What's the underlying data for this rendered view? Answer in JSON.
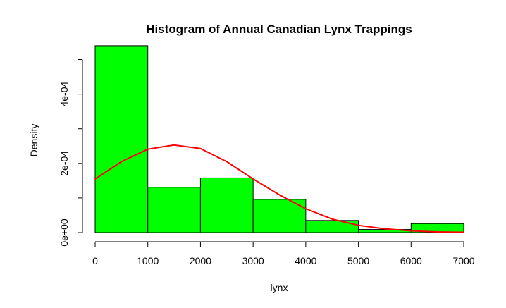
{
  "chart_data": {
    "type": "bar",
    "title": "Histogram of Annual Canadian Lynx Trappings",
    "xlabel": "lynx",
    "ylabel": "Density",
    "bins": [
      {
        "from": 0,
        "to": 1000,
        "density": 0.00054
      },
      {
        "from": 1000,
        "to": 2000,
        "density": 0.000131
      },
      {
        "from": 2000,
        "to": 3000,
        "density": 0.000158
      },
      {
        "from": 3000,
        "to": 4000,
        "density": 9.6e-05
      },
      {
        "from": 4000,
        "to": 5000,
        "density": 3.5e-05
      },
      {
        "from": 5000,
        "to": 6000,
        "density": 9e-06
      },
      {
        "from": 6000,
        "to": 7000,
        "density": 2.6e-05
      }
    ],
    "density_curve": {
      "x": [
        0,
        500,
        1000,
        1500,
        2000,
        2500,
        3000,
        3500,
        4000,
        4500,
        5000,
        5500,
        6000,
        6500,
        7000
      ],
      "y": [
        0.000155,
        0.000205,
        0.000241,
        0.000253,
        0.000243,
        0.000205,
        0.000155,
        0.000109,
        6.9e-05,
        3.9e-05,
        2.1e-05,
        1.1e-05,
        5e-06,
        2e-06,
        1e-06
      ]
    },
    "xlim": [
      0,
      7000
    ],
    "ylim": [
      0,
      0.00055
    ],
    "x_ticks": [
      "0",
      "1000",
      "2000",
      "3000",
      "4000",
      "5000",
      "6000",
      "7000"
    ],
    "y_ticks": [
      "0e+00",
      "2e-04",
      "4e-04"
    ],
    "colors": {
      "bar_fill": "#00ff00",
      "bar_stroke": "#000000",
      "curve": "#ff0000"
    },
    "grid": false
  }
}
